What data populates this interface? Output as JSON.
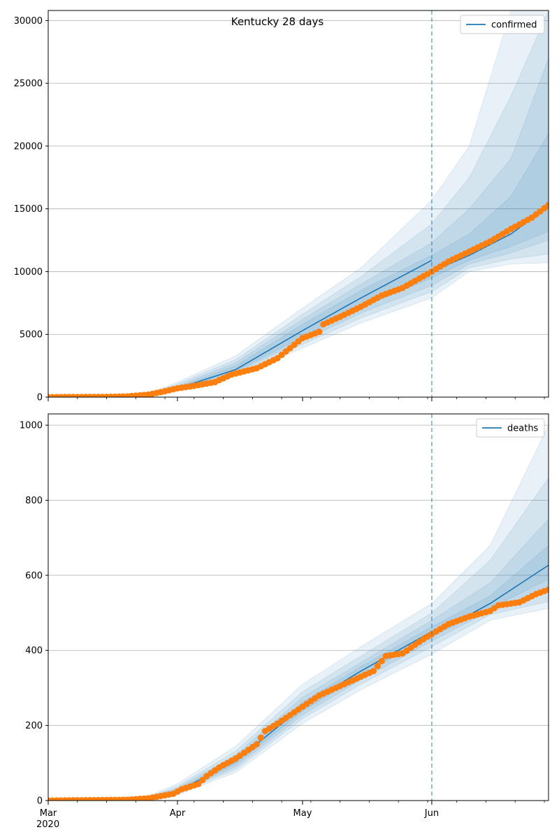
{
  "title": "Kentucky 28 days",
  "colors": {
    "model_line": "#1f77b4",
    "observed": "#ff7f0e",
    "band": "#1f77b4",
    "forecast_line": "#1f77b4",
    "grid": "#b0b0b0"
  },
  "x_axis": {
    "start": "2020-03-01",
    "end": "2020-06-29",
    "ticks": [
      {
        "date": "2020-03-01",
        "label": "Mar",
        "sublabel": "2020"
      },
      {
        "date": "2020-04-01",
        "label": "Apr",
        "sublabel": ""
      },
      {
        "date": "2020-05-01",
        "label": "May",
        "sublabel": ""
      },
      {
        "date": "2020-06-01",
        "label": "Jun",
        "sublabel": ""
      }
    ]
  },
  "forecast_start": "2020-06-01",
  "chart_data": [
    {
      "type": "line",
      "name": "confirmed",
      "legend": "confirmed",
      "legend_position": "top-right",
      "grid": "horizontal",
      "ylim": [
        0,
        30800
      ],
      "yticks": [
        0,
        5000,
        10000,
        15000,
        20000,
        25000,
        30000
      ],
      "model": [
        {
          "date": "2020-03-01",
          "value": 0
        },
        {
          "date": "2020-03-25",
          "value": 150
        },
        {
          "date": "2020-04-01",
          "value": 700
        },
        {
          "date": "2020-04-15",
          "value": 2200
        },
        {
          "date": "2020-05-01",
          "value": 5300
        },
        {
          "date": "2020-05-15",
          "value": 7900
        },
        {
          "date": "2020-06-01",
          "value": 10900
        }
      ],
      "median_forecast": [
        {
          "date": "2020-06-01",
          "value": 10000
        },
        {
          "date": "2020-06-10",
          "value": 11300
        },
        {
          "date": "2020-06-20",
          "value": 13000
        },
        {
          "date": "2020-06-29",
          "value": 15200
        }
      ],
      "bands": [
        {
          "level": 1,
          "points": [
            {
              "date": "2020-03-01",
              "lo": 0,
              "hi": 0
            },
            {
              "date": "2020-03-25",
              "lo": 100,
              "hi": 300
            },
            {
              "date": "2020-04-01",
              "lo": 500,
              "hi": 1200
            },
            {
              "date": "2020-04-15",
              "lo": 1700,
              "hi": 3300
            },
            {
              "date": "2020-05-01",
              "lo": 3900,
              "hi": 7100
            },
            {
              "date": "2020-05-15",
              "lo": 5900,
              "hi": 10300
            },
            {
              "date": "2020-06-01",
              "lo": 7900,
              "hi": 15700
            },
            {
              "date": "2020-06-10",
              "lo": 10000,
              "hi": 20000
            },
            {
              "date": "2020-06-20",
              "lo": 10600,
              "hi": 30800
            },
            {
              "date": "2020-06-29",
              "lo": 10700,
              "hi": 30800
            }
          ]
        },
        {
          "level": 2,
          "points": [
            {
              "date": "2020-03-01",
              "lo": 0,
              "hi": 0
            },
            {
              "date": "2020-03-25",
              "lo": 110,
              "hi": 250
            },
            {
              "date": "2020-04-01",
              "lo": 550,
              "hi": 1050
            },
            {
              "date": "2020-04-15",
              "lo": 1850,
              "hi": 3000
            },
            {
              "date": "2020-05-01",
              "lo": 4200,
              "hi": 6600
            },
            {
              "date": "2020-05-15",
              "lo": 6300,
              "hi": 9600
            },
            {
              "date": "2020-06-01",
              "lo": 8400,
              "hi": 13800
            },
            {
              "date": "2020-06-10",
              "lo": 10300,
              "hi": 17500
            },
            {
              "date": "2020-06-20",
              "lo": 11000,
              "hi": 24000
            },
            {
              "date": "2020-06-29",
              "lo": 11400,
              "hi": 30800
            }
          ]
        },
        {
          "level": 3,
          "points": [
            {
              "date": "2020-03-01",
              "lo": 0,
              "hi": 0
            },
            {
              "date": "2020-03-25",
              "lo": 120,
              "hi": 210
            },
            {
              "date": "2020-04-01",
              "lo": 600,
              "hi": 900
            },
            {
              "date": "2020-04-15",
              "lo": 1950,
              "hi": 2750
            },
            {
              "date": "2020-05-01",
              "lo": 4500,
              "hi": 6200
            },
            {
              "date": "2020-05-15",
              "lo": 6700,
              "hi": 9000
            },
            {
              "date": "2020-06-01",
              "lo": 8900,
              "hi": 12300
            },
            {
              "date": "2020-06-10",
              "lo": 10600,
              "hi": 15000
            },
            {
              "date": "2020-06-20",
              "lo": 11500,
              "hi": 19000
            },
            {
              "date": "2020-06-29",
              "lo": 12500,
              "hi": 27000
            }
          ]
        },
        {
          "level": 4,
          "points": [
            {
              "date": "2020-03-01",
              "lo": 0,
              "hi": 0
            },
            {
              "date": "2020-03-25",
              "lo": 130,
              "hi": 180
            },
            {
              "date": "2020-04-01",
              "lo": 650,
              "hi": 780
            },
            {
              "date": "2020-04-15",
              "lo": 2050,
              "hi": 2500
            },
            {
              "date": "2020-05-01",
              "lo": 4800,
              "hi": 5800
            },
            {
              "date": "2020-05-15",
              "lo": 7100,
              "hi": 8500
            },
            {
              "date": "2020-06-01",
              "lo": 9500,
              "hi": 11300
            },
            {
              "date": "2020-06-10",
              "lo": 10900,
              "hi": 13000
            },
            {
              "date": "2020-06-20",
              "lo": 12000,
              "hi": 16000
            },
            {
              "date": "2020-06-29",
              "lo": 13200,
              "hi": 21000
            }
          ]
        }
      ],
      "observed": [
        {
          "date": "2020-03-01",
          "value": 0
        },
        {
          "date": "2020-03-15",
          "value": 20
        },
        {
          "date": "2020-03-20",
          "value": 60
        },
        {
          "date": "2020-03-25",
          "value": 200
        },
        {
          "date": "2020-03-28",
          "value": 400
        },
        {
          "date": "2020-04-01",
          "value": 700
        },
        {
          "date": "2020-04-05",
          "value": 900
        },
        {
          "date": "2020-04-10",
          "value": 1200
        },
        {
          "date": "2020-04-14",
          "value": 1800
        },
        {
          "date": "2020-04-20",
          "value": 2300
        },
        {
          "date": "2020-04-25",
          "value": 3100
        },
        {
          "date": "2020-05-01",
          "value": 4700
        },
        {
          "date": "2020-05-05",
          "value": 5200
        },
        {
          "date": "2020-05-06",
          "value": 5800
        },
        {
          "date": "2020-05-10",
          "value": 6400
        },
        {
          "date": "2020-05-15",
          "value": 7200
        },
        {
          "date": "2020-05-20",
          "value": 8100
        },
        {
          "date": "2020-05-25",
          "value": 8700
        },
        {
          "date": "2020-06-01",
          "value": 10000
        },
        {
          "date": "2020-06-05",
          "value": 10800
        },
        {
          "date": "2020-06-10",
          "value": 11600
        },
        {
          "date": "2020-06-15",
          "value": 12400
        },
        {
          "date": "2020-06-20",
          "value": 13400
        },
        {
          "date": "2020-06-25",
          "value": 14300
        },
        {
          "date": "2020-06-29",
          "value": 15300
        }
      ]
    },
    {
      "type": "line",
      "name": "deaths",
      "legend": "deaths",
      "legend_position": "top-right",
      "grid": "horizontal",
      "ylim": [
        0,
        1030
      ],
      "yticks": [
        0,
        200,
        400,
        600,
        800,
        1000
      ],
      "model": [
        {
          "date": "2020-03-01",
          "value": 0
        },
        {
          "date": "2020-03-25",
          "value": 7
        },
        {
          "date": "2020-04-01",
          "value": 25
        },
        {
          "date": "2020-04-15",
          "value": 105
        },
        {
          "date": "2020-05-01",
          "value": 250
        },
        {
          "date": "2020-05-15",
          "value": 345
        },
        {
          "date": "2020-06-01",
          "value": 450
        }
      ],
      "median_forecast": [
        {
          "date": "2020-06-01",
          "value": 440
        },
        {
          "date": "2020-06-15",
          "value": 525
        },
        {
          "date": "2020-06-29",
          "value": 627
        }
      ],
      "bands": [
        {
          "level": 1,
          "points": [
            {
              "date": "2020-03-01",
              "lo": 0,
              "hi": 0
            },
            {
              "date": "2020-03-25",
              "lo": 4,
              "hi": 12
            },
            {
              "date": "2020-04-01",
              "lo": 15,
              "hi": 45
            },
            {
              "date": "2020-04-15",
              "lo": 75,
              "hi": 145
            },
            {
              "date": "2020-05-01",
              "lo": 205,
              "hi": 310
            },
            {
              "date": "2020-05-15",
              "lo": 295,
              "hi": 410
            },
            {
              "date": "2020-06-01",
              "lo": 390,
              "hi": 525
            },
            {
              "date": "2020-06-15",
              "lo": 480,
              "hi": 680
            },
            {
              "date": "2020-06-29",
              "lo": 512,
              "hi": 1000
            }
          ]
        },
        {
          "level": 2,
          "points": [
            {
              "date": "2020-03-01",
              "lo": 0,
              "hi": 0
            },
            {
              "date": "2020-03-25",
              "lo": 5,
              "hi": 10
            },
            {
              "date": "2020-04-01",
              "lo": 18,
              "hi": 38
            },
            {
              "date": "2020-04-15",
              "lo": 83,
              "hi": 132
            },
            {
              "date": "2020-05-01",
              "lo": 218,
              "hi": 290
            },
            {
              "date": "2020-05-15",
              "lo": 310,
              "hi": 385
            },
            {
              "date": "2020-06-01",
              "lo": 410,
              "hi": 500
            },
            {
              "date": "2020-06-15",
              "lo": 495,
              "hi": 640
            },
            {
              "date": "2020-06-29",
              "lo": 530,
              "hi": 860
            }
          ]
        },
        {
          "level": 3,
          "points": [
            {
              "date": "2020-03-01",
              "lo": 0,
              "hi": 0
            },
            {
              "date": "2020-03-25",
              "lo": 6,
              "hi": 9
            },
            {
              "date": "2020-04-01",
              "lo": 20,
              "hi": 33
            },
            {
              "date": "2020-04-15",
              "lo": 90,
              "hi": 122
            },
            {
              "date": "2020-05-01",
              "lo": 228,
              "hi": 275
            },
            {
              "date": "2020-05-15",
              "lo": 322,
              "hi": 368
            },
            {
              "date": "2020-06-01",
              "lo": 425,
              "hi": 480
            },
            {
              "date": "2020-06-15",
              "lo": 505,
              "hi": 580
            },
            {
              "date": "2020-06-29",
              "lo": 560,
              "hi": 750
            }
          ]
        },
        {
          "level": 4,
          "points": [
            {
              "date": "2020-03-01",
              "lo": 0,
              "hi": 0
            },
            {
              "date": "2020-03-25",
              "lo": 6,
              "hi": 8
            },
            {
              "date": "2020-04-01",
              "lo": 22,
              "hi": 29
            },
            {
              "date": "2020-04-15",
              "lo": 97,
              "hi": 113
            },
            {
              "date": "2020-05-01",
              "lo": 238,
              "hi": 262
            },
            {
              "date": "2020-05-15",
              "lo": 334,
              "hi": 357
            },
            {
              "date": "2020-06-01",
              "lo": 437,
              "hi": 463
            },
            {
              "date": "2020-06-15",
              "lo": 512,
              "hi": 545
            },
            {
              "date": "2020-06-29",
              "lo": 590,
              "hi": 680
            }
          ]
        }
      ],
      "observed": [
        {
          "date": "2020-03-01",
          "value": 0
        },
        {
          "date": "2020-03-20",
          "value": 2
        },
        {
          "date": "2020-03-25",
          "value": 6
        },
        {
          "date": "2020-03-31",
          "value": 18
        },
        {
          "date": "2020-04-02",
          "value": 30
        },
        {
          "date": "2020-04-06",
          "value": 44
        },
        {
          "date": "2020-04-08",
          "value": 65
        },
        {
          "date": "2020-04-11",
          "value": 88
        },
        {
          "date": "2020-04-15",
          "value": 112
        },
        {
          "date": "2020-04-20",
          "value": 150
        },
        {
          "date": "2020-04-22",
          "value": 185
        },
        {
          "date": "2020-04-25",
          "value": 205
        },
        {
          "date": "2020-05-01",
          "value": 250
        },
        {
          "date": "2020-05-05",
          "value": 280
        },
        {
          "date": "2020-05-10",
          "value": 305
        },
        {
          "date": "2020-05-15",
          "value": 330
        },
        {
          "date": "2020-05-18",
          "value": 345
        },
        {
          "date": "2020-05-21",
          "value": 385
        },
        {
          "date": "2020-05-25",
          "value": 392
        },
        {
          "date": "2020-05-30",
          "value": 430
        },
        {
          "date": "2020-06-05",
          "value": 470
        },
        {
          "date": "2020-06-10",
          "value": 490
        },
        {
          "date": "2020-06-15",
          "value": 505
        },
        {
          "date": "2020-06-17",
          "value": 520
        },
        {
          "date": "2020-06-22",
          "value": 528
        },
        {
          "date": "2020-06-26",
          "value": 550
        },
        {
          "date": "2020-06-29",
          "value": 562
        }
      ]
    }
  ]
}
